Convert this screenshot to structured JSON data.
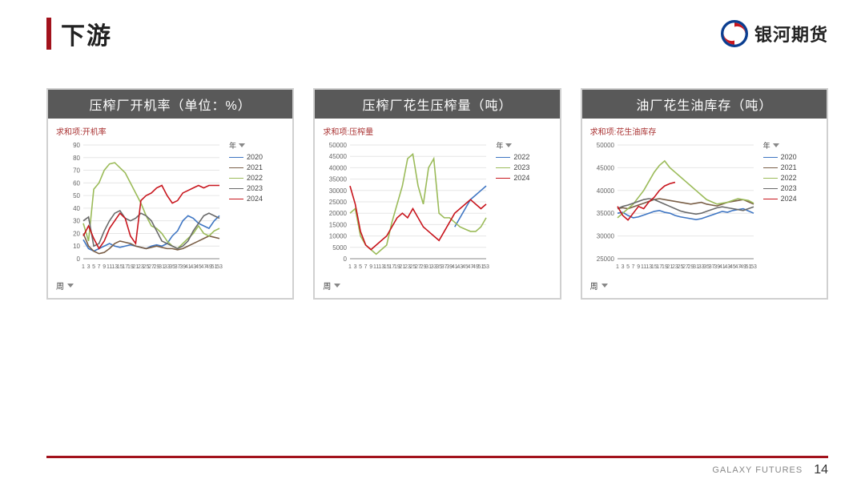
{
  "page": {
    "title": "下游",
    "brand_text": "银河期货",
    "footer_label": "GALAXY FUTURES",
    "page_number": "14",
    "accent_color": "#a2121c",
    "panel_header_bg": "#595959"
  },
  "legend_label": "年",
  "axis_label": "周",
  "brand_logo": {
    "outer": "#0b3e90",
    "inner": "#c8151d"
  },
  "charts": [
    {
      "title": "压榨厂开机率（单位：%）",
      "sub_title": "求和项:开机率",
      "type": "line",
      "x": [
        1,
        3,
        5,
        7,
        9,
        11,
        13,
        15,
        17,
        19,
        21,
        23,
        25,
        27,
        29,
        31,
        33,
        35,
        37,
        39,
        41,
        43,
        45,
        47,
        49,
        51,
        53
      ],
      "ylim": [
        0,
        90
      ],
      "ytick_step": 10,
      "grid_color": "#e6e6e6",
      "series": [
        {
          "label": "2020",
          "color": "#3f76c3",
          "data": [
            15,
            8,
            6,
            8,
            10,
            12,
            10,
            9,
            10,
            11,
            10,
            9,
            8,
            10,
            11,
            10,
            12,
            18,
            22,
            30,
            34,
            32,
            28,
            26,
            24,
            30,
            34
          ]
        },
        {
          "label": "2021",
          "color": "#7a5f47",
          "data": [
            20,
            10,
            6,
            4,
            5,
            8,
            12,
            14,
            13,
            12,
            10,
            9,
            8,
            9,
            10,
            9,
            8,
            8,
            7,
            8,
            10,
            12,
            14,
            16,
            18,
            17,
            16
          ]
        },
        {
          "label": "2022",
          "color": "#9bbb59",
          "data": [
            28,
            14,
            55,
            60,
            70,
            75,
            76,
            72,
            68,
            60,
            52,
            44,
            34,
            26,
            24,
            20,
            14,
            10,
            8,
            12,
            16,
            20,
            26,
            20,
            18,
            22,
            24
          ]
        },
        {
          "label": "2023",
          "color": "#6a6a6a",
          "data": [
            30,
            33,
            10,
            12,
            22,
            30,
            36,
            38,
            32,
            30,
            32,
            36,
            34,
            30,
            22,
            14,
            12,
            10,
            8,
            10,
            14,
            22,
            28,
            34,
            36,
            34,
            32
          ]
        },
        {
          "label": "2024",
          "color": "#c8151d",
          "data": [
            18,
            26,
            16,
            8,
            14,
            24,
            30,
            36,
            32,
            18,
            12,
            46,
            50,
            52,
            56,
            58,
            50,
            44,
            46,
            52,
            54,
            56,
            58,
            56,
            58,
            58,
            58
          ]
        }
      ]
    },
    {
      "title": "压榨厂花生压榨量（吨）",
      "sub_title": "求和项:压榨量",
      "type": "line",
      "x": [
        1,
        3,
        5,
        7,
        9,
        11,
        13,
        15,
        17,
        19,
        21,
        23,
        25,
        27,
        29,
        31,
        33,
        35,
        37,
        39,
        41,
        43,
        45,
        47,
        49,
        51,
        53
      ],
      "ylim": [
        0,
        50000
      ],
      "ytick_step": 5000,
      "grid_color": "#e6e6e6",
      "series": [
        {
          "label": "2022",
          "color": "#3f76c3",
          "data": [
            null,
            null,
            null,
            null,
            null,
            null,
            null,
            null,
            null,
            null,
            null,
            null,
            null,
            null,
            null,
            null,
            null,
            null,
            null,
            null,
            14000,
            18000,
            22000,
            26000,
            28000,
            30000,
            32000
          ]
        },
        {
          "label": "2023",
          "color": "#9bbb59",
          "data": [
            20000,
            22000,
            10000,
            6000,
            4000,
            2000,
            4000,
            6000,
            16000,
            24000,
            32000,
            44000,
            46000,
            32000,
            24000,
            40000,
            44000,
            20000,
            18000,
            18000,
            16000,
            14000,
            13000,
            12000,
            12000,
            14000,
            18000
          ]
        },
        {
          "label": "2024",
          "color": "#c8151d",
          "data": [
            32000,
            24000,
            12000,
            6000,
            4000,
            6000,
            8000,
            10000,
            14000,
            18000,
            20000,
            18000,
            22000,
            18000,
            14000,
            12000,
            10000,
            8000,
            12000,
            16000,
            20000,
            22000,
            24000,
            26000,
            24000,
            22000,
            24000
          ]
        }
      ]
    },
    {
      "title": "油厂花生油库存（吨）",
      "sub_title": "求和项:花生油库存",
      "type": "line",
      "x": [
        1,
        3,
        5,
        7,
        9,
        11,
        13,
        15,
        17,
        19,
        21,
        23,
        25,
        27,
        29,
        31,
        33,
        35,
        37,
        39,
        41,
        43,
        45,
        47,
        49,
        51,
        53
      ],
      "ylim": [
        25000,
        50000
      ],
      "ytick_step": 5000,
      "grid_color": "#e6e6e6",
      "series": [
        {
          "label": "2020",
          "color": "#3f76c3",
          "data": [
            35000,
            35200,
            34500,
            34000,
            34200,
            34600,
            35000,
            35400,
            35600,
            35200,
            35000,
            34500,
            34200,
            34000,
            33800,
            33600,
            33800,
            34200,
            34600,
            35000,
            35400,
            35200,
            35600,
            35800,
            36000,
            35500,
            35000
          ]
        },
        {
          "label": "2021",
          "color": "#7a5f47",
          "data": [
            36000,
            36200,
            36000,
            36400,
            36800,
            37200,
            37600,
            38000,
            38200,
            38000,
            37800,
            37600,
            37400,
            37200,
            37000,
            37200,
            37400,
            37000,
            36800,
            36600,
            37000,
            37400,
            37600,
            37800,
            38000,
            37500,
            37000
          ]
        },
        {
          "label": "2022",
          "color": "#9bbb59",
          "data": [
            34000,
            35000,
            36000,
            37000,
            38500,
            40000,
            42000,
            44000,
            45500,
            46500,
            45000,
            44000,
            43000,
            42000,
            41000,
            40000,
            39000,
            38000,
            37500,
            37000,
            37200,
            37400,
            37800,
            38200,
            38000,
            37800,
            37200
          ]
        },
        {
          "label": "2023",
          "color": "#6a6a6a",
          "data": [
            36000,
            36500,
            36800,
            37200,
            37600,
            38000,
            38200,
            38000,
            37500,
            37000,
            36500,
            36000,
            35500,
            35200,
            35000,
            34800,
            35000,
            35400,
            35800,
            36200,
            36400,
            36200,
            36000,
            35800,
            35600,
            36000,
            36400
          ]
        },
        {
          "label": "2024",
          "color": "#c8151d",
          "data": [
            36500,
            34500,
            33500,
            35000,
            36500,
            36000,
            37500,
            38500,
            40000,
            41000,
            41500,
            41800,
            null,
            null,
            null,
            null,
            null,
            null,
            null,
            null,
            null,
            null,
            null,
            null,
            null,
            null,
            null
          ]
        }
      ]
    }
  ]
}
